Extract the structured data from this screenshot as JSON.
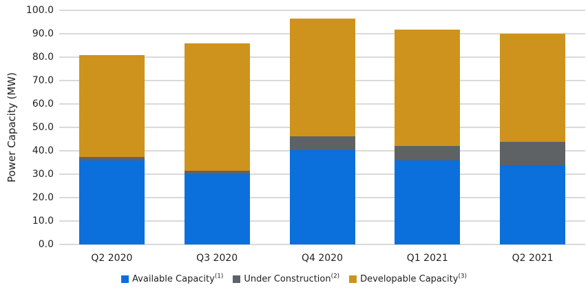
{
  "chart_data": {
    "type": "bar",
    "stacked": true,
    "title": "",
    "xlabel": "",
    "ylabel": "Power Capacity (MW)",
    "categories": [
      "Q2 2020",
      "Q3 2020",
      "Q4 2020",
      "Q1 2021",
      "Q2 2021"
    ],
    "series": [
      {
        "name": "Available Capacity",
        "sup": "(1)",
        "color": "#0B6FDC",
        "values": [
          36.0,
          30.0,
          40.3,
          35.8,
          33.9
        ]
      },
      {
        "name": "Under Construction",
        "sup": "(2)",
        "color": "#5F6265",
        "values": [
          1.5,
          1.5,
          6.0,
          6.2,
          10.0
        ]
      },
      {
        "name": "Developable Capacity",
        "sup": "(3)",
        "color": "#CE931D",
        "values": [
          43.5,
          54.5,
          50.2,
          49.8,
          46.1
        ]
      }
    ],
    "stack_totals": [
      81.0,
      86.0,
      96.5,
      91.8,
      90.0
    ],
    "ylim": [
      0,
      100
    ],
    "ytick_step": 10,
    "ytick_labels": [
      "0.0",
      "10.0",
      "20.0",
      "30.0",
      "40.0",
      "50.0",
      "60.0",
      "70.0",
      "80.0",
      "90.0",
      "100.0"
    ],
    "grid": true,
    "legend_position": "bottom",
    "colors": {
      "gridline": "#D9D9D9",
      "text": "#1F1F1F",
      "background": "#FFFFFF"
    }
  }
}
